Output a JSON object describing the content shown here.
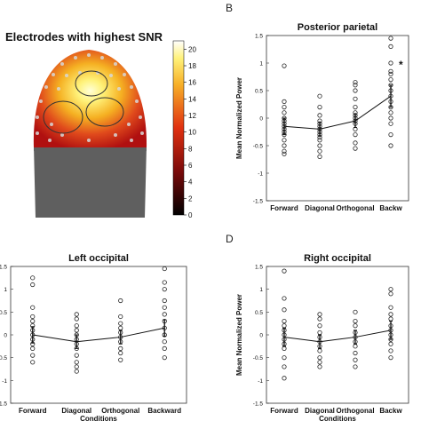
{
  "heatmap": {
    "title": "Electrodes with highest SNR",
    "colorbar_ticks": [
      "20",
      "18",
      "16",
      "14",
      "12",
      "10",
      "8",
      "6",
      "4",
      "2",
      "0"
    ],
    "colorbar_range": [
      0,
      21
    ]
  },
  "panel_letters": {
    "b": "B",
    "d": "D"
  },
  "common": {
    "ylabel": "Mean Normalized Power",
    "xlabel": "Conditions",
    "yticks": [
      "-1.5",
      "-1",
      "-0.5",
      "0",
      "0.5",
      "1",
      "1.5"
    ]
  },
  "chart_data": [
    {
      "type": "scatter",
      "title": "Posterior parietal",
      "categories": [
        "Forward",
        "Diagonal",
        "Orthogonal",
        "Backward"
      ],
      "category_labels": [
        "Forward",
        "Diagonal",
        "Orthogonal",
        "Backw"
      ],
      "xlabel": "Conditions",
      "ylabel": "Mean Normalized Power",
      "ylim": [
        -1.5,
        1.5
      ],
      "annotation": "*",
      "means": [
        -0.15,
        -0.2,
        -0.05,
        0.4
      ],
      "sem": [
        0.15,
        0.12,
        0.12,
        0.2
      ],
      "points": [
        [
          0.95,
          0.3,
          0.2,
          0.1,
          0.0,
          -0.05,
          -0.1,
          -0.15,
          -0.2,
          -0.25,
          -0.3,
          -0.4,
          -0.5,
          -0.6,
          -0.65
        ],
        [
          0.4,
          0.2,
          0.05,
          -0.05,
          -0.1,
          -0.15,
          -0.2,
          -0.25,
          -0.3,
          -0.35,
          -0.4,
          -0.5,
          -0.6,
          -0.7
        ],
        [
          0.65,
          0.6,
          0.5,
          0.35,
          0.2,
          0.1,
          0.05,
          0.0,
          -0.05,
          -0.1,
          -0.2,
          -0.3,
          -0.45,
          -0.55
        ],
        [
          1.45,
          1.3,
          1.0,
          0.85,
          0.8,
          0.7,
          0.6,
          0.5,
          0.4,
          0.3,
          0.2,
          0.1,
          0.0,
          -0.1,
          -0.3,
          -0.5
        ]
      ]
    },
    {
      "type": "scatter",
      "title": "Left occipital",
      "categories": [
        "Forward",
        "Diagonal",
        "Orthogonal",
        "Backward"
      ],
      "category_labels": [
        "Forward",
        "Diagonal",
        "Orthogonal",
        "Backward"
      ],
      "xlabel": "Conditions",
      "ylabel": "Mean Normalized Power",
      "ylim": [
        -1.5,
        1.5
      ],
      "means": [
        0.0,
        -0.15,
        -0.05,
        0.15
      ],
      "sem": [
        0.18,
        0.15,
        0.15,
        0.18
      ],
      "points": [
        [
          1.25,
          1.1,
          0.6,
          0.4,
          0.3,
          0.2,
          0.1,
          0.0,
          -0.1,
          -0.2,
          -0.3,
          -0.45,
          -0.6
        ],
        [
          0.45,
          0.35,
          0.2,
          0.1,
          0.0,
          -0.1,
          -0.2,
          -0.3,
          -0.45,
          -0.6,
          -0.7,
          -0.8
        ],
        [
          0.75,
          0.4,
          0.25,
          0.15,
          0.05,
          -0.05,
          -0.15,
          -0.3,
          -0.4,
          -0.55
        ],
        [
          1.45,
          1.15,
          1.0,
          0.75,
          0.6,
          0.45,
          0.3,
          0.15,
          0.0,
          -0.15,
          -0.3,
          -0.5
        ]
      ]
    },
    {
      "type": "scatter",
      "title": "Right occipital",
      "categories": [
        "Forward",
        "Diagonal",
        "Orthogonal",
        "Backward"
      ],
      "category_labels": [
        "Forward",
        "Diagonal",
        "Orthogonal",
        "Backw"
      ],
      "xlabel": "Conditions",
      "ylabel": "Mean Normalized Power",
      "ylim": [
        -1.5,
        1.5
      ],
      "means": [
        -0.05,
        -0.15,
        -0.05,
        0.1
      ],
      "sem": [
        0.2,
        0.15,
        0.15,
        0.2
      ],
      "points": [
        [
          1.4,
          0.8,
          0.55,
          0.3,
          0.2,
          0.1,
          0.0,
          -0.1,
          -0.2,
          -0.3,
          -0.5,
          -0.7,
          -0.95
        ],
        [
          0.45,
          0.35,
          0.2,
          0.05,
          -0.05,
          -0.15,
          -0.25,
          -0.35,
          -0.5,
          -0.6,
          -0.7
        ],
        [
          0.5,
          0.3,
          0.2,
          0.05,
          -0.05,
          -0.15,
          -0.25,
          -0.4,
          -0.55,
          -0.7
        ],
        [
          1.0,
          0.9,
          0.6,
          0.45,
          0.35,
          0.2,
          0.1,
          0.0,
          -0.1,
          -0.2,
          -0.35,
          -0.5
        ]
      ]
    }
  ]
}
